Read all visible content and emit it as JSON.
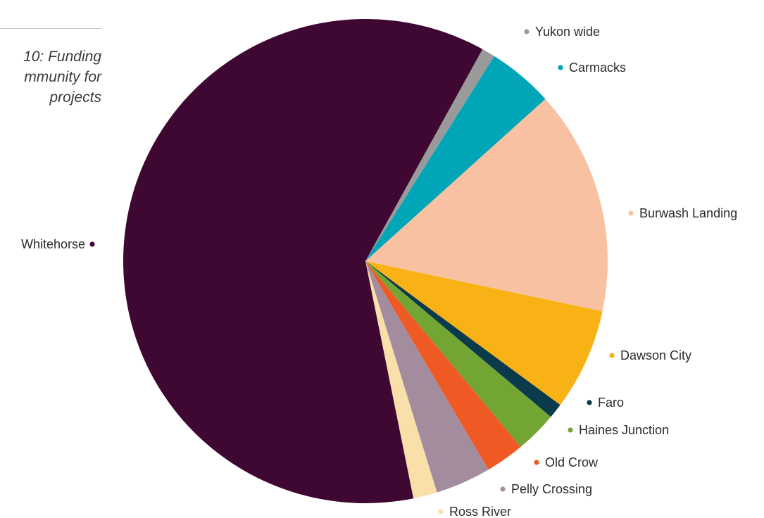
{
  "caption": {
    "line1": "10: Funding",
    "line2": "mmunity for",
    "line3": "projects"
  },
  "chart_data": {
    "type": "pie",
    "title": "",
    "start_angle_deg": 28.9,
    "direction": "clockwise",
    "slices": [
      {
        "label": "Yukon wide",
        "value": 0.9,
        "color": "#9a9a9a"
      },
      {
        "label": "Carmacks",
        "value": 4.4,
        "color": "#00a5b8"
      },
      {
        "label": "Burwash Landing",
        "value": 15.0,
        "color": "#f8c1a1"
      },
      {
        "label": "Dawson City",
        "value": 6.8,
        "color": "#f9b216"
      },
      {
        "label": "Faro",
        "value": 1.0,
        "color": "#0b3a4a"
      },
      {
        "label": "Haines Junction",
        "value": 2.8,
        "color": "#73a535"
      },
      {
        "label": "Old Crow",
        "value": 2.6,
        "color": "#ef5a24"
      },
      {
        "label": "Pelly Crossing",
        "value": 3.7,
        "color": "#a48c9f"
      },
      {
        "label": "Ross River",
        "value": 1.6,
        "color": "#f9dfa9"
      },
      {
        "label": "Whitehorse",
        "value": 61.2,
        "color": "#3e0833"
      }
    ]
  }
}
